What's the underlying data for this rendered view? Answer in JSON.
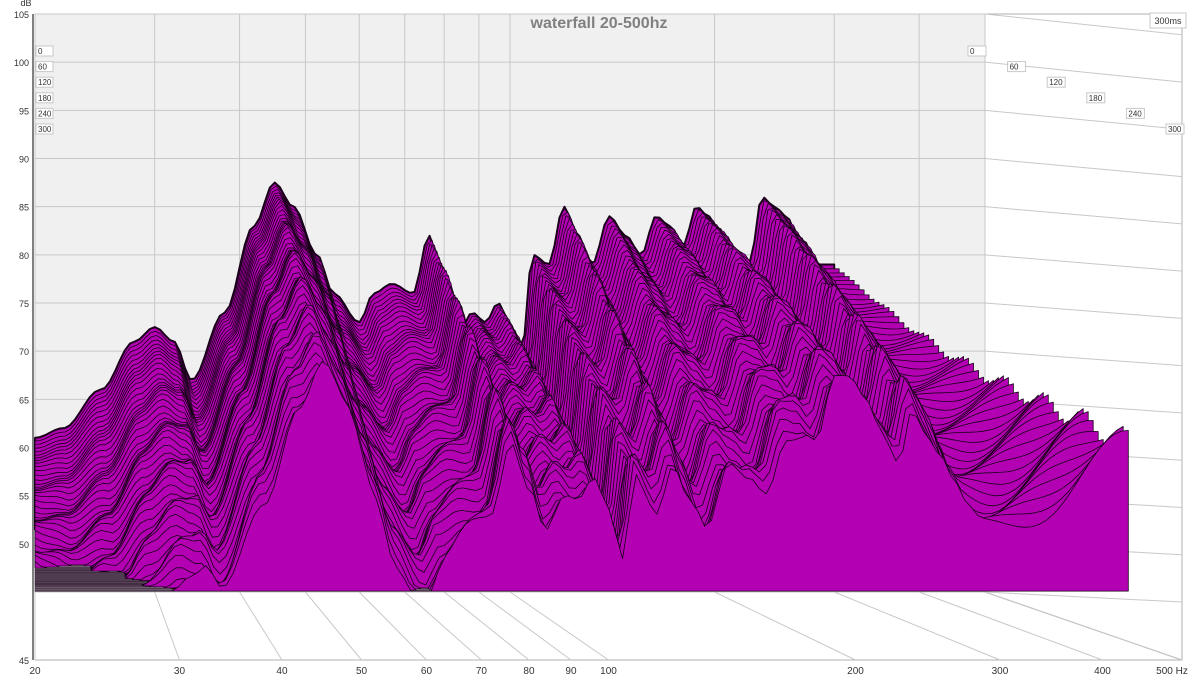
{
  "chart_data": {
    "type": "waterfall",
    "title": "waterfall 20-500hz",
    "ylabel": "dB",
    "xlabel_unit": "Hz",
    "time_unit_label": "300ms",
    "x_scale": "log",
    "xlim": [
      20,
      500
    ],
    "ylim": [
      45,
      105
    ],
    "time_range_ms": [
      0,
      300
    ],
    "x_ticks": [
      {
        "v": 20,
        "label": "20"
      },
      {
        "v": 30,
        "label": "30"
      },
      {
        "v": 40,
        "label": "40"
      },
      {
        "v": 50,
        "label": "50"
      },
      {
        "v": 60,
        "label": "60"
      },
      {
        "v": 70,
        "label": "70"
      },
      {
        "v": 80,
        "label": "80"
      },
      {
        "v": 90,
        "label": "90"
      },
      {
        "v": 100,
        "label": "100"
      },
      {
        "v": 200,
        "label": "200"
      },
      {
        "v": 300,
        "label": "300"
      },
      {
        "v": 400,
        "label": "400"
      },
      {
        "v": 500,
        "label": "500 Hz"
      }
    ],
    "y_ticks": [
      {
        "v": 105,
        "label": "105"
      },
      {
        "v": 100,
        "label": "100"
      },
      {
        "v": 95,
        "label": "95"
      },
      {
        "v": 90,
        "label": "90"
      },
      {
        "v": 85,
        "label": "85"
      },
      {
        "v": 80,
        "label": "80"
      },
      {
        "v": 75,
        "label": "75"
      },
      {
        "v": 70,
        "label": "70"
      },
      {
        "v": 65,
        "label": "65"
      },
      {
        "v": 60,
        "label": "60"
      },
      {
        "v": 55,
        "label": "55"
      },
      {
        "v": 50,
        "label": "50"
      },
      {
        "v": 45,
        "label": "45"
      }
    ],
    "time_ticks": [
      {
        "v": 0,
        "label": "0"
      },
      {
        "v": 60,
        "label": "60"
      },
      {
        "v": 120,
        "label": "120"
      },
      {
        "v": 180,
        "label": "180"
      },
      {
        "v": 240,
        "label": "240"
      },
      {
        "v": 300,
        "label": "300"
      }
    ],
    "fill_color": "#b300b3",
    "line_color": "#1a001a",
    "front_series": {
      "name": "0",
      "x": [
        20,
        22,
        25,
        28,
        30,
        32,
        34,
        38,
        42,
        45,
        48,
        52,
        55,
        60,
        63,
        67,
        72,
        76,
        80,
        84,
        88,
        92,
        96,
        100,
        104,
        108,
        114,
        120,
        126,
        132,
        140,
        148,
        156,
        164,
        172,
        180,
        188,
        196,
        205,
        215,
        225,
        235,
        245,
        255,
        265,
        275,
        285,
        295,
        300
      ],
      "y": [
        61,
        62,
        66,
        71,
        72.5,
        71,
        67,
        74,
        83,
        87.5,
        85,
        80,
        76,
        73,
        76,
        77,
        76,
        82,
        77,
        72,
        74,
        73,
        75,
        73,
        70,
        80,
        79,
        85,
        82,
        79,
        84,
        82,
        80,
        84,
        83,
        81,
        85,
        84,
        82,
        80,
        79,
        86,
        85,
        84,
        82,
        80,
        79,
        79,
        79
      ]
    },
    "slice_count": 60,
    "decay_db_at_300ms": 22
  },
  "colors": {
    "background": "#ffffff",
    "back_wall": "#f0f0f0",
    "floor": "#ffffff",
    "grid": "#c8c8c8",
    "axis_text": "#333333",
    "title_text": "#808080"
  }
}
